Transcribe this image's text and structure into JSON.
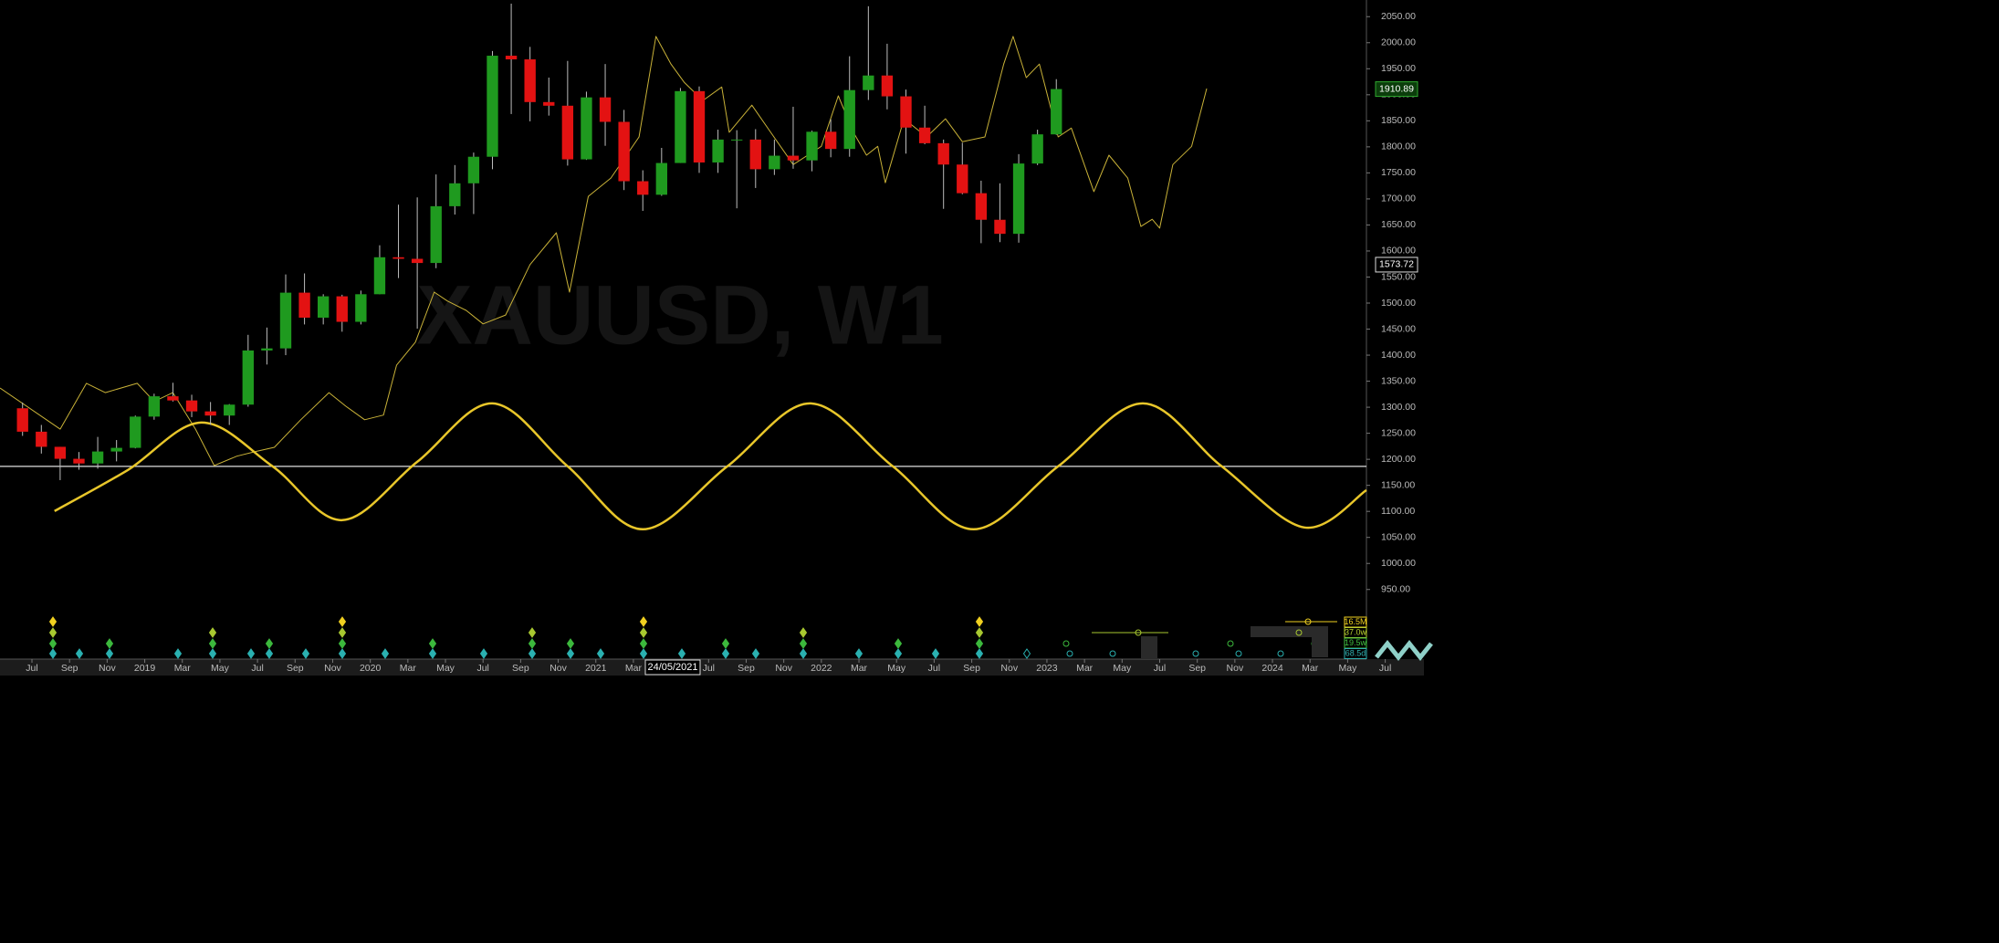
{
  "chart_data": {
    "type": "candlestick",
    "title": "XAUUSD, W1",
    "x": [
      5.5,
      6.5,
      7.5,
      8.5,
      9.5,
      10.5,
      11.5,
      12.5,
      13.5,
      14.5,
      15.5,
      16.5,
      17.5,
      18.5,
      19.5,
      20.5,
      21.5,
      22.5,
      23.5,
      24.5,
      25.5,
      26.5,
      27.5,
      28.5,
      29.5,
      30.5,
      31.5,
      32.5,
      33.5,
      34.5,
      35.5,
      36.5,
      37.5,
      38.5,
      39.5,
      40.5,
      41.5,
      42.5,
      43.5,
      44.5,
      45.5,
      46.5,
      47.5,
      48.5,
      49.5,
      50.5,
      51.5,
      52.5,
      53.5,
      54.5,
      55.5,
      56.5,
      57.5,
      58.5,
      59.5,
      60.5
    ],
    "open": [
      1298,
      1253,
      1224,
      1201,
      1192,
      1215,
      1222,
      1282,
      1321,
      1313,
      1292,
      1284,
      1305,
      1409,
      1413,
      1520,
      1472,
      1513,
      1464,
      1517,
      1588,
      1585,
      1577,
      1686,
      1730,
      1781,
      1975,
      1968,
      1886,
      1879,
      1776,
      1895,
      1848,
      1734,
      1708,
      1769,
      1907,
      1770,
      1814,
      1814,
      1757,
      1783,
      1774,
      1829,
      1796,
      1909,
      1937,
      1897,
      1837,
      1807,
      1766,
      1711,
      1660,
      1633,
      1768,
      1824
    ],
    "high": [
      1309,
      1266,
      1224,
      1214,
      1243,
      1237,
      1284,
      1326,
      1347,
      1324,
      1310,
      1306,
      1439,
      1453,
      1555,
      1557,
      1517,
      1516,
      1524,
      1611,
      1689,
      1703,
      1747,
      1765,
      1789,
      1984,
      2075,
      1992,
      1933,
      1965,
      1906,
      1959,
      1871,
      1755,
      1798,
      1913,
      1916,
      1833,
      1832,
      1834,
      1814,
      1877,
      1831,
      1853,
      1974,
      2070,
      1998,
      1910,
      1879,
      1814,
      1808,
      1735,
      1730,
      1786,
      1833,
      1930
    ],
    "low": [
      1245,
      1211,
      1160,
      1180,
      1182,
      1196,
      1221,
      1276,
      1311,
      1281,
      1266,
      1266,
      1301,
      1382,
      1400,
      1459,
      1459,
      1445,
      1459,
      1517,
      1548,
      1451,
      1567,
      1670,
      1671,
      1757,
      1863,
      1849,
      1860,
      1764,
      1775,
      1802,
      1717,
      1677,
      1706,
      1769,
      1750,
      1750,
      1682,
      1721,
      1746,
      1758,
      1753,
      1780,
      1781,
      1890,
      1872,
      1787,
      1805,
      1681,
      1709,
      1615,
      1617,
      1616,
      1765,
      1823
    ],
    "close": [
      1253,
      1224,
      1201,
      1192,
      1215,
      1222,
      1282,
      1321,
      1313,
      1292,
      1284,
      1305,
      1409,
      1413,
      1520,
      1472,
      1513,
      1464,
      1517,
      1588,
      1585,
      1577,
      1686,
      1730,
      1781,
      1975,
      1968,
      1886,
      1879,
      1776,
      1895,
      1848,
      1734,
      1708,
      1769,
      1907,
      1770,
      1814,
      1814,
      1757,
      1783,
      1774,
      1829,
      1796,
      1909,
      1937,
      1897,
      1837,
      1807,
      1766,
      1711,
      1660,
      1633,
      1768,
      1824,
      1911
    ],
    "up_color": "#1f9a1f",
    "down_color": "#e31212",
    "wick_color": "#bdbdbd",
    "lines": [
      {
        "color": "#c9b238",
        "width": 1,
        "smooth": false,
        "x": [
          4.3,
          7.5,
          8.9,
          9.9,
          11.6,
          12.5,
          13.5,
          14.7,
          15.7,
          16.9,
          17.9,
          18.9,
          20.3,
          21.8,
          22.7,
          23.7,
          24.7,
          25.4,
          26.4,
          27.4,
          28.1,
          29.1,
          30.0,
          31.2,
          32.5,
          33.9,
          34.6,
          35.6,
          36.8,
          38.3,
          39.2,
          40.0,
          40.7,
          41.7,
          42.7,
          43.1,
          44.3,
          45.3,
          46.5,
          48.0,
          48.9,
          49.7,
          50.4,
          51.0,
          51.4,
          52.4,
          53.6,
          54.6,
          55.5,
          56.7,
          57.7,
          58.2,
          58.9,
          59.6,
          60.6,
          61.3,
          62.5,
          63.3,
          64.3,
          65.0,
          65.6,
          66.0,
          66.7,
          67.7,
          68.5
        ],
        "values": [
          1337,
          1258,
          1346,
          1328,
          1346,
          1311,
          1328,
          1258,
          1188,
          1206,
          1215,
          1223,
          1276,
          1328,
          1302,
          1276,
          1285,
          1381,
          1425,
          1521,
          1504,
          1486,
          1460,
          1477,
          1574,
          1635,
          1521,
          1705,
          1740,
          1819,
          2012,
          1959,
          1924,
          1889,
          1915,
          1828,
          1880,
          1828,
          1766,
          1801,
          1898,
          1828,
          1784,
          1801,
          1731,
          1854,
          1819,
          1854,
          1810,
          1819,
          1959,
          2012,
          1933,
          1959,
          1819,
          1836,
          1714,
          1784,
          1740,
          1647,
          1661,
          1644,
          1766,
          1801,
          1912
        ]
      },
      {
        "color": "#e8c62a",
        "width": 2.5,
        "smooth": true,
        "x": [
          7.2,
          11.1,
          15.0,
          18.8,
          22.5,
          26.5,
          30.5,
          34.5,
          38.5,
          43.0,
          47.4,
          51.8,
          56.1,
          60.6,
          65.1,
          69.3,
          73.7,
          77.0
        ],
        "values": [
          1100.6,
          1179.4,
          1270.5,
          1186.5,
          1083.1,
          1195.2,
          1307.3,
          1186.5,
          1065.6,
          1186.5,
          1307.3,
          1186.5,
          1065.6,
          1186.5,
          1307.3,
          1186.5,
          1069.1,
          1140.9
        ]
      }
    ],
    "hline": 1186.5,
    "hline_color": "#e0e0e0",
    "last_price": 1910.89,
    "cursor_price": 1573.72,
    "cursor_date": "24/05/2021",
    "xlim": [
      4.3,
      77
    ],
    "ylim": [
      911,
      2082
    ],
    "yticks": [
      {
        "value": 950,
        "label": "950.00"
      },
      {
        "value": 1000,
        "label": "1000.00"
      },
      {
        "value": 1050,
        "label": "1050.00"
      },
      {
        "value": 1100,
        "label": "1100.00"
      },
      {
        "value": 1150,
        "label": "1150.00"
      },
      {
        "value": 1200,
        "label": "1200.00"
      },
      {
        "value": 1250,
        "label": "1250.00"
      },
      {
        "value": 1300,
        "label": "1300.00"
      },
      {
        "value": 1350,
        "label": "1350.00"
      },
      {
        "value": 1400,
        "label": "1400.00"
      },
      {
        "value": 1450,
        "label": "1450.00"
      },
      {
        "value": 1500,
        "label": "1500.00"
      },
      {
        "value": 1550,
        "label": "1550.00"
      },
      {
        "value": 1600,
        "label": "1600.00"
      },
      {
        "value": 1650,
        "label": "1650.00"
      },
      {
        "value": 1700,
        "label": "1700.00"
      },
      {
        "value": 1750,
        "label": "1750.00"
      },
      {
        "value": 1800,
        "label": "1800.00"
      },
      {
        "value": 1850,
        "label": "1850.00"
      },
      {
        "value": 1900,
        "label": "1900.00"
      },
      {
        "value": 1950,
        "label": "1950.00"
      },
      {
        "value": 2000,
        "label": "2000.00"
      },
      {
        "value": 2050,
        "label": "2050.00"
      }
    ],
    "xticks": [
      {
        "value": 6,
        "label": "Jul"
      },
      {
        "value": 8,
        "label": "Sep"
      },
      {
        "value": 10,
        "label": "Nov"
      },
      {
        "value": 12,
        "label": "2019"
      },
      {
        "value": 14,
        "label": "Mar"
      },
      {
        "value": 16,
        "label": "May"
      },
      {
        "value": 18,
        "label": "Jul"
      },
      {
        "value": 20,
        "label": "Sep"
      },
      {
        "value": 22,
        "label": "Nov"
      },
      {
        "value": 24,
        "label": "2020"
      },
      {
        "value": 26,
        "label": "Mar"
      },
      {
        "value": 28,
        "label": "May"
      },
      {
        "value": 30,
        "label": "Jul"
      },
      {
        "value": 32,
        "label": "Sep"
      },
      {
        "value": 34,
        "label": "Nov"
      },
      {
        "value": 36,
        "label": "2021"
      },
      {
        "value": 38,
        "label": "Mar"
      },
      {
        "value": 42,
        "label": "Jul"
      },
      {
        "value": 44,
        "label": "Sep"
      },
      {
        "value": 46,
        "label": "Nov"
      },
      {
        "value": 48,
        "label": "2022"
      },
      {
        "value": 50,
        "label": "Mar"
      },
      {
        "value": 52,
        "label": "May"
      },
      {
        "value": 54,
        "label": "Jul"
      },
      {
        "value": 56,
        "label": "Sep"
      },
      {
        "value": 58,
        "label": "Nov"
      },
      {
        "value": 60,
        "label": "2023"
      },
      {
        "value": 62,
        "label": "Mar"
      },
      {
        "value": 64,
        "label": "May"
      },
      {
        "value": 66,
        "label": "Jul"
      },
      {
        "value": 68,
        "label": "Sep"
      },
      {
        "value": 70,
        "label": "Nov"
      },
      {
        "value": 72,
        "label": "2024"
      },
      {
        "value": 74,
        "label": "Mar"
      },
      {
        "value": 76,
        "label": "May"
      },
      {
        "value": 78,
        "label": "Jul"
      }
    ],
    "cycle_labels": [
      {
        "label": "16.5M",
        "color": "#f0d020"
      },
      {
        "label": "37.0w",
        "color": "#b8d030"
      },
      {
        "label": "19.5w",
        "color": "#40c040"
      },
      {
        "label": "68.5d",
        "color": "#30b0b0"
      }
    ]
  }
}
